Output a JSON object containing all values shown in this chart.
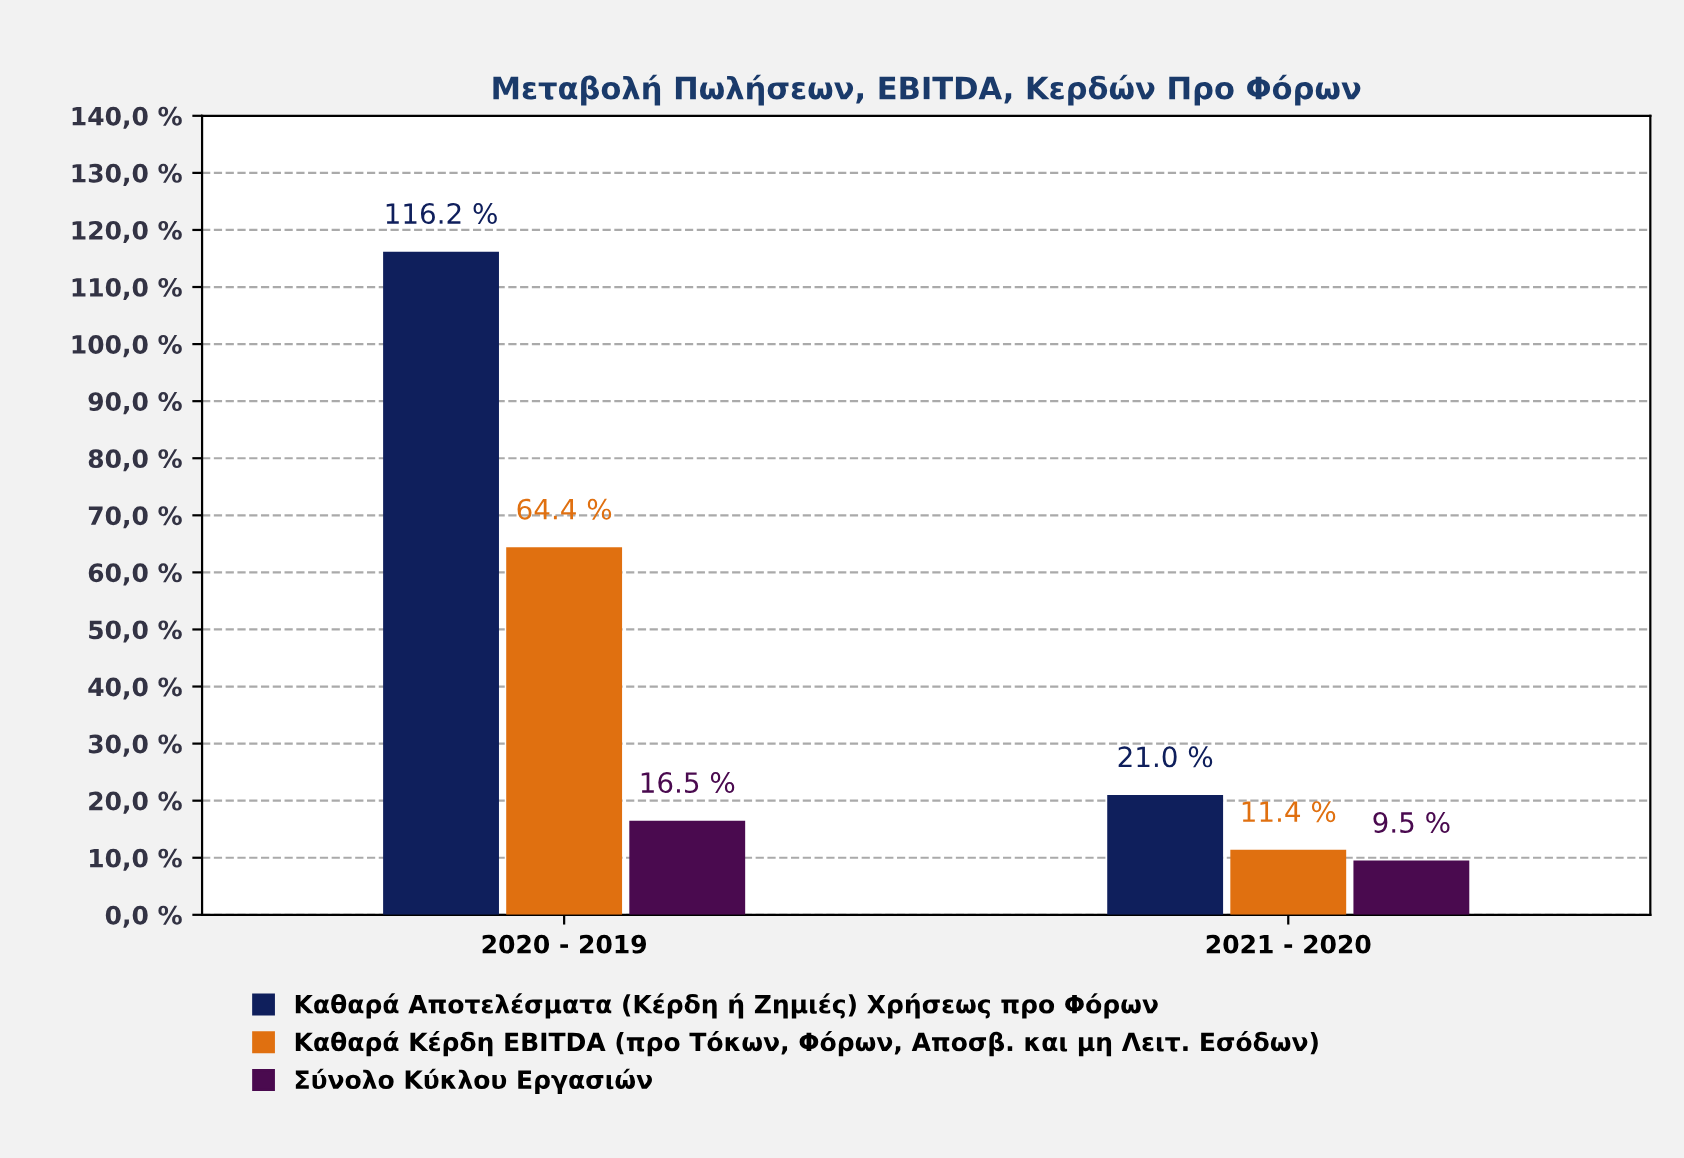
{
  "chart_data": {
    "type": "bar",
    "title": "Μεταβολή Πωλήσεων, EBITDA, Κερδών Προ Φόρων",
    "categories": [
      "2020 - 2019",
      "2021 - 2020"
    ],
    "series": [
      {
        "name": "Καθαρά Αποτελέσματα (Κέρδη ή Ζημιές) Χρήσεως προ Φόρων",
        "color": "#0f1f5c",
        "values": [
          116.2,
          21.0
        ],
        "value_labels": [
          "116.2 %",
          "21.0 %"
        ]
      },
      {
        "name": "Καθαρά Κέρδη EBITDA (προ Τόκων, Φόρων, Αποσβ. και μη Λειτ. Εσόδων)",
        "color": "#e07010",
        "values": [
          64.4,
          11.4
        ],
        "value_labels": [
          "64.4 %",
          "11.4 %"
        ]
      },
      {
        "name": "Σύνολο Κύκλου Εργασιών",
        "color": "#4a0a4f",
        "values": [
          16.5,
          9.5
        ],
        "value_labels": [
          "16.5 %",
          "9.5 %"
        ]
      }
    ],
    "ylim": [
      0,
      140
    ],
    "yticks": [
      {
        "value": 0,
        "label": "0,0 %"
      },
      {
        "value": 10,
        "label": "10,0 %"
      },
      {
        "value": 20,
        "label": "20,0 %"
      },
      {
        "value": 30,
        "label": "30,0 %"
      },
      {
        "value": 40,
        "label": "40,0 %"
      },
      {
        "value": 50,
        "label": "50,0 %"
      },
      {
        "value": 60,
        "label": "60,0 %"
      },
      {
        "value": 70,
        "label": "70,0 %"
      },
      {
        "value": 80,
        "label": "80,0 %"
      },
      {
        "value": 90,
        "label": "90,0 %"
      },
      {
        "value": 100,
        "label": "100,0 %"
      },
      {
        "value": 110,
        "label": "110,0 %"
      },
      {
        "value": 120,
        "label": "120,0 %"
      },
      {
        "value": 130,
        "label": "130,0 %"
      },
      {
        "value": 140,
        "label": "140,0 %"
      }
    ],
    "grid": "y",
    "legend": "bottom"
  }
}
